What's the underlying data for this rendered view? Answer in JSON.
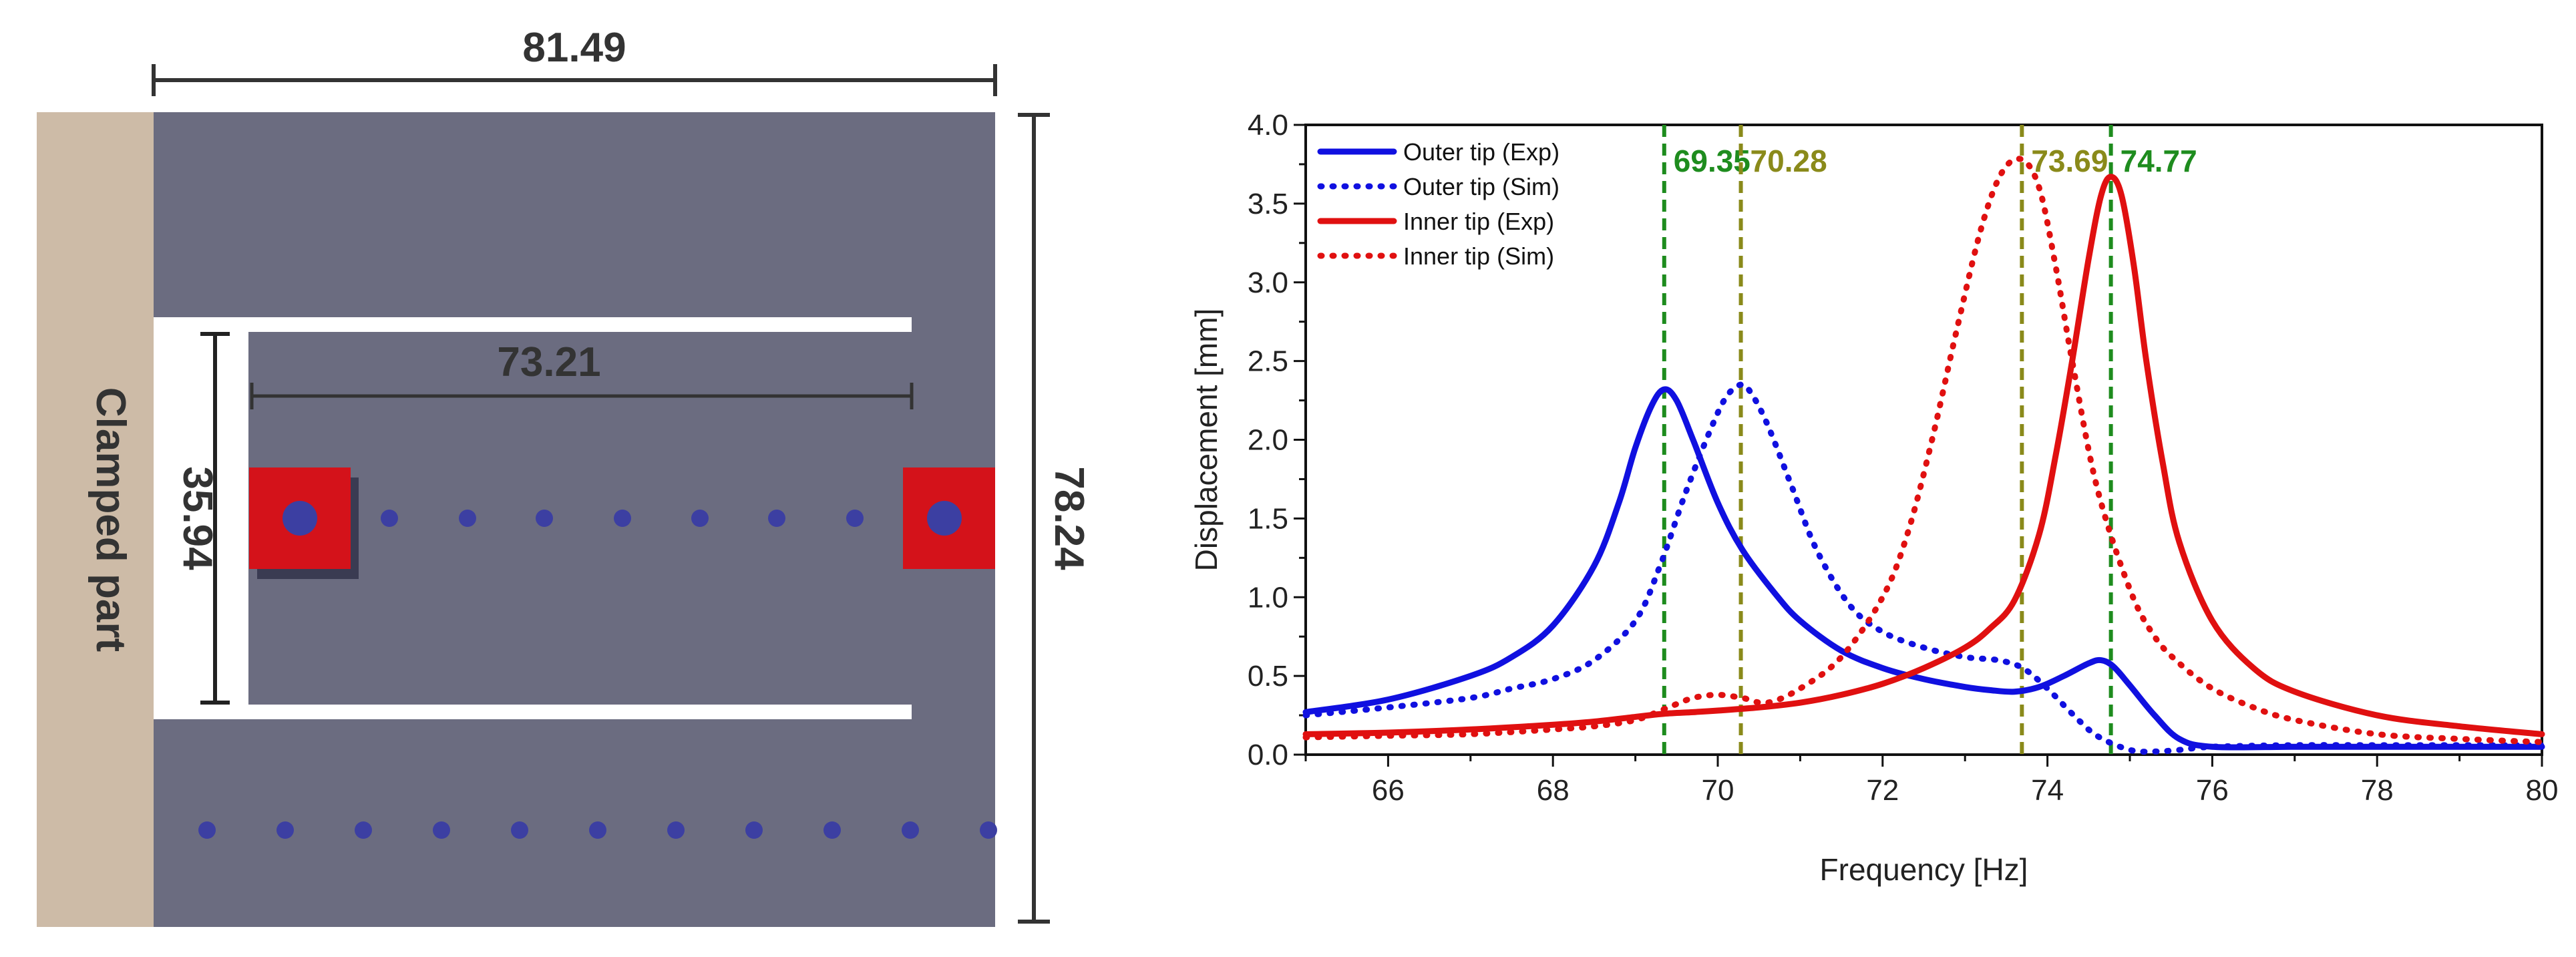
{
  "schematic": {
    "clamped_label": "Clamped part",
    "dim_width": "81.49",
    "dim_height": "78.24",
    "dim_inner_length": "73.21",
    "dim_inner_width": "35.94",
    "colors": {
      "clamp": "#cdbba7",
      "plate": "#6b6c80",
      "slot": "#ffffff",
      "mass": "#d4121a",
      "mass_shadow": "#3a3b52",
      "dot": "#3c3fa2",
      "dim_line": "#333333"
    }
  },
  "chart_data": {
    "type": "line",
    "xlabel": "Frequency [Hz]",
    "ylabel": "Displacement [mm]",
    "xlim": [
      65,
      80
    ],
    "ylim": [
      0,
      4
    ],
    "xticks": [
      "66",
      "68",
      "70",
      "72",
      "74",
      "76",
      "78",
      "80"
    ],
    "yticks": [
      "0.0",
      "0.5",
      "1.0",
      "1.5",
      "2.0",
      "2.5",
      "3.0",
      "3.5",
      "4.0"
    ],
    "series": [
      {
        "name": "Outer tip (Exp)",
        "color": "#1010e0",
        "style": "solid",
        "x": [
          65,
          66,
          67,
          67.5,
          68,
          68.5,
          68.8,
          69.0,
          69.2,
          69.35,
          69.5,
          69.7,
          70.0,
          70.3,
          70.7,
          71.0,
          71.5,
          72.0,
          72.5,
          73.0,
          73.3,
          73.6,
          73.9,
          74.2,
          74.5,
          74.65,
          74.8,
          75.0,
          75.3,
          75.6,
          76.0,
          77.0,
          78.0,
          79.0,
          80.0
        ],
        "y": [
          0.27,
          0.35,
          0.5,
          0.62,
          0.82,
          1.2,
          1.6,
          1.95,
          2.22,
          2.32,
          2.25,
          2.0,
          1.6,
          1.3,
          1.02,
          0.85,
          0.66,
          0.55,
          0.48,
          0.43,
          0.41,
          0.4,
          0.43,
          0.5,
          0.58,
          0.6,
          0.56,
          0.44,
          0.25,
          0.1,
          0.05,
          0.05,
          0.05,
          0.05,
          0.05
        ]
      },
      {
        "name": "Outer tip (Sim)",
        "color": "#1010e0",
        "style": "dotted",
        "x": [
          65,
          66,
          67,
          67.5,
          68,
          68.5,
          69.0,
          69.3,
          69.6,
          69.9,
          70.1,
          70.28,
          70.4,
          70.6,
          70.9,
          71.2,
          71.6,
          72.0,
          72.5,
          73.0,
          73.4,
          73.7,
          74.0,
          74.3,
          74.6,
          75.0,
          75.3,
          75.6,
          76.0,
          77.0,
          78.0,
          79.0,
          80.0
        ],
        "y": [
          0.25,
          0.3,
          0.36,
          0.42,
          0.48,
          0.6,
          0.85,
          1.2,
          1.65,
          2.05,
          2.27,
          2.35,
          2.3,
          2.1,
          1.7,
          1.3,
          0.95,
          0.78,
          0.68,
          0.62,
          0.6,
          0.55,
          0.42,
          0.26,
          0.12,
          0.03,
          0.02,
          0.03,
          0.05,
          0.06,
          0.06,
          0.06,
          0.06
        ]
      },
      {
        "name": "Inner tip (Exp)",
        "color": "#e01010",
        "style": "solid",
        "x": [
          65,
          66,
          67,
          68,
          68.5,
          69.0,
          69.35,
          69.7,
          70.0,
          70.5,
          71.0,
          71.5,
          72.0,
          72.5,
          73.0,
          73.3,
          73.6,
          73.9,
          74.1,
          74.3,
          74.5,
          74.65,
          74.77,
          74.9,
          75.05,
          75.2,
          75.4,
          75.6,
          76.0,
          76.5,
          77.0,
          78.0,
          79.0,
          80.0
        ],
        "y": [
          0.13,
          0.14,
          0.16,
          0.19,
          0.21,
          0.24,
          0.26,
          0.27,
          0.28,
          0.3,
          0.33,
          0.38,
          0.45,
          0.55,
          0.68,
          0.8,
          0.98,
          1.4,
          1.9,
          2.5,
          3.15,
          3.55,
          3.67,
          3.55,
          3.1,
          2.5,
          1.85,
          1.35,
          0.85,
          0.55,
          0.4,
          0.25,
          0.18,
          0.13
        ]
      },
      {
        "name": "Inner tip (Sim)",
        "color": "#e01010",
        "style": "dotted",
        "x": [
          65,
          66,
          67,
          68,
          68.5,
          69.0,
          69.4,
          69.7,
          70.0,
          70.3,
          70.6,
          71.0,
          71.5,
          72.0,
          72.3,
          72.6,
          72.9,
          73.2,
          73.45,
          73.69,
          73.9,
          74.1,
          74.3,
          74.6,
          75.0,
          75.3,
          75.6,
          76.0,
          76.5,
          77.0,
          78.0,
          79.0,
          80.0
        ],
        "y": [
          0.11,
          0.12,
          0.13,
          0.16,
          0.18,
          0.22,
          0.3,
          0.36,
          0.38,
          0.36,
          0.33,
          0.42,
          0.62,
          1.0,
          1.4,
          2.0,
          2.7,
          3.35,
          3.7,
          3.78,
          3.6,
          3.1,
          2.5,
          1.7,
          1.05,
          0.75,
          0.58,
          0.42,
          0.3,
          0.22,
          0.13,
          0.1,
          0.08
        ]
      }
    ],
    "vlines": [
      {
        "x": 69.35,
        "label": "69.35",
        "color": "#1e8c1e"
      },
      {
        "x": 70.28,
        "label": "70.28",
        "color": "#8a8a1a"
      },
      {
        "x": 73.69,
        "label": "73.69",
        "color": "#8a8a1a"
      },
      {
        "x": 74.77,
        "label": "74.77",
        "color": "#1e8c1e"
      }
    ],
    "legend_position": "top-left"
  }
}
